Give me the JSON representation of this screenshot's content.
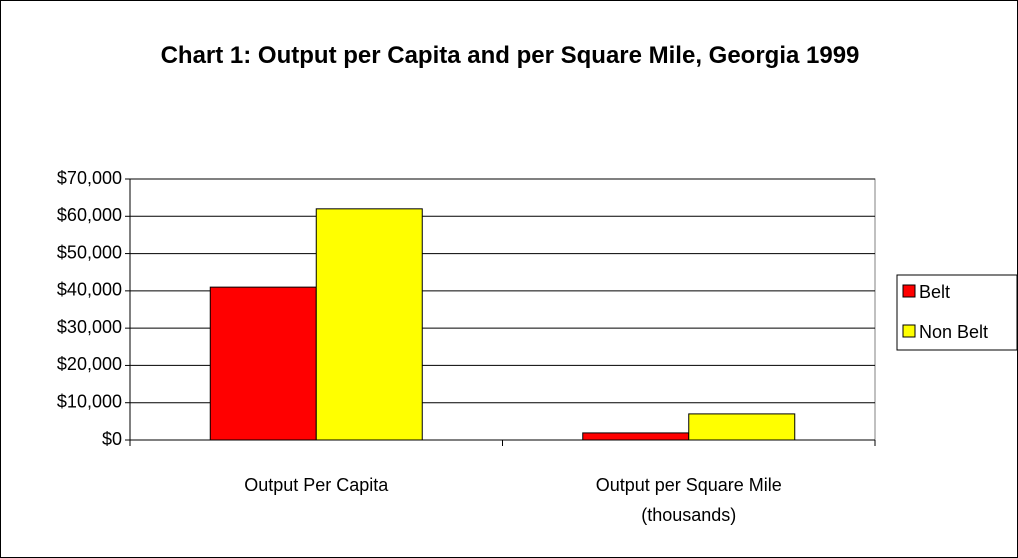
{
  "chart_data": {
    "type": "bar",
    "title": "Chart 1: Output per Capita and per Square Mile, Georgia 1999",
    "categories": [
      "Output Per Capita",
      "Output per Square Mile (thousands)"
    ],
    "series": [
      {
        "name": "Belt",
        "color": "#ff0000",
        "values": [
          41000,
          1900
        ]
      },
      {
        "name": "Non Belt",
        "color": "#ffff00",
        "values": [
          62000,
          7000
        ]
      }
    ],
    "ylim": [
      0,
      70000
    ],
    "yticks": [
      {
        "value": 0,
        "label": "$0"
      },
      {
        "value": 10000,
        "label": "$10,000"
      },
      {
        "value": 20000,
        "label": "$20,000"
      },
      {
        "value": 30000,
        "label": "$30,000"
      },
      {
        "value": 40000,
        "label": "$40,000"
      },
      {
        "value": 50000,
        "label": "$50,000"
      },
      {
        "value": 60000,
        "label": "$60,000"
      },
      {
        "value": 70000,
        "label": "$70,000"
      }
    ],
    "grid": true,
    "legend": "right"
  }
}
